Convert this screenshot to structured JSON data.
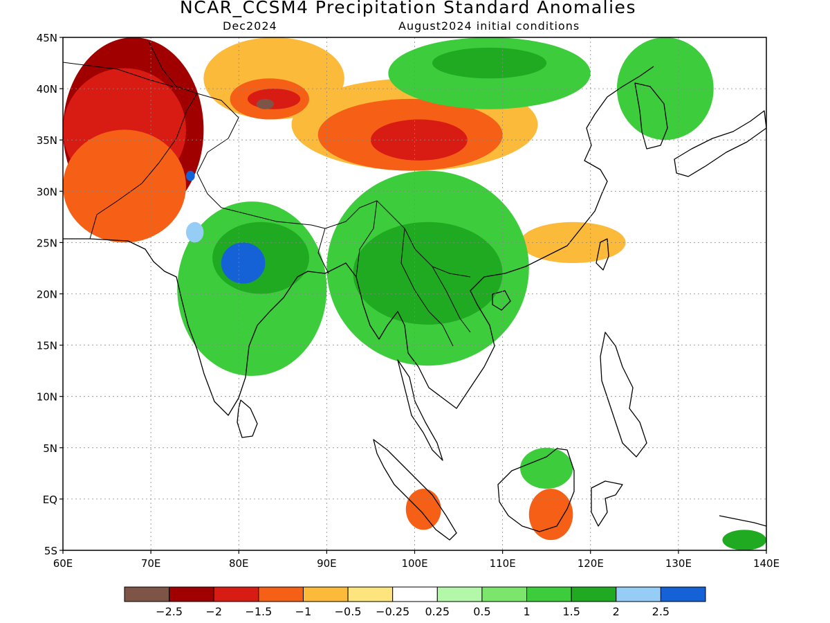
{
  "title": "NCAR_CCSM4 Precipitation Standard Anomalies",
  "subtitle_left": "Dec2024",
  "subtitle_right": "August2024 initial conditions",
  "chart_data": {
    "type": "heatmap",
    "x_ticks": [
      "60E",
      "70E",
      "80E",
      "90E",
      "100E",
      "110E",
      "120E",
      "130E",
      "140E"
    ],
    "y_ticks": [
      "5S",
      "EQ",
      "5N",
      "10N",
      "15N",
      "20N",
      "25N",
      "30N",
      "35N",
      "40N",
      "45N"
    ],
    "lon_range": [
      60,
      140
    ],
    "lat_range": [
      -5,
      45
    ],
    "grid": true,
    "colorbar": {
      "labels": [
        "-2.5",
        "-2",
        "-1.5",
        "-1",
        "-0.5",
        "-0.25",
        "0.25",
        "0.5",
        "1",
        "1.5",
        "2",
        "2.5"
      ],
      "colors": [
        "#7d5446",
        "#a00000",
        "#d81c14",
        "#f56016",
        "#fbba3a",
        "#fde47c",
        "#ffffff",
        "#b3f7a9",
        "#7be56c",
        "#3dcc3c",
        "#1faa22",
        "#95cdf7",
        "#1561d6"
      ]
    },
    "regions": [
      {
        "category": "-2",
        "lon": [
          60,
          76
        ],
        "lat": [
          27,
          45
        ]
      },
      {
        "category": "-1.5",
        "lon": [
          60,
          74
        ],
        "lat": [
          30,
          42
        ]
      },
      {
        "category": "-1",
        "lon": [
          60,
          74
        ],
        "lat": [
          25,
          36
        ]
      },
      {
        "category": "-0.5",
        "lon": [
          86,
          114
        ],
        "lat": [
          32,
          41
        ]
      },
      {
        "category": "-1",
        "lon": [
          89,
          110
        ],
        "lat": [
          32,
          39
        ]
      },
      {
        "category": "-1.5",
        "lon": [
          95,
          106
        ],
        "lat": [
          33,
          37
        ]
      },
      {
        "category": "-0.5",
        "lon": [
          76,
          92
        ],
        "lat": [
          37,
          45
        ]
      },
      {
        "category": "-1",
        "lon": [
          79,
          88
        ],
        "lat": [
          37,
          41
        ]
      },
      {
        "category": "-1.5",
        "lon": [
          81,
          87
        ],
        "lat": [
          38,
          40
        ]
      },
      {
        "category": "-2.5",
        "lon": [
          82,
          84
        ],
        "lat": [
          38,
          39
        ]
      },
      {
        "category": "-0.5",
        "lon": [
          112,
          124
        ],
        "lat": [
          23,
          27
        ]
      },
      {
        "category": "-1",
        "lon": [
          113,
          118
        ],
        "lat": [
          -4,
          1
        ]
      },
      {
        "category": "-1",
        "lon": [
          99,
          103
        ],
        "lat": [
          -3,
          1
        ]
      },
      {
        "category": "1",
        "lon": [
          73,
          90
        ],
        "lat": [
          12,
          29
        ]
      },
      {
        "category": "1.5",
        "lon": [
          77,
          88
        ],
        "lat": [
          20,
          27
        ]
      },
      {
        "category": "2.5",
        "lon": [
          78,
          83
        ],
        "lat": [
          21,
          25
        ]
      },
      {
        "category": "2",
        "lon": [
          74,
          76
        ],
        "lat": [
          25,
          27
        ]
      },
      {
        "category": "2.5",
        "lon": [
          74,
          75
        ],
        "lat": [
          31,
          32
        ]
      },
      {
        "category": "1",
        "lon": [
          90,
          113
        ],
        "lat": [
          13,
          32
        ]
      },
      {
        "category": "1.5",
        "lon": [
          93,
          110
        ],
        "lat": [
          17,
          27
        ]
      },
      {
        "category": "1",
        "lon": [
          97,
          120
        ],
        "lat": [
          38,
          45
        ]
      },
      {
        "category": "1.5",
        "lon": [
          102,
          115
        ],
        "lat": [
          41,
          44
        ]
      },
      {
        "category": "1",
        "lon": [
          123,
          134
        ],
        "lat": [
          35,
          45
        ]
      },
      {
        "category": "1",
        "lon": [
          112,
          118
        ],
        "lat": [
          1,
          5
        ]
      },
      {
        "category": "1.5",
        "lon": [
          135,
          140
        ],
        "lat": [
          -5,
          -3
        ]
      }
    ]
  }
}
